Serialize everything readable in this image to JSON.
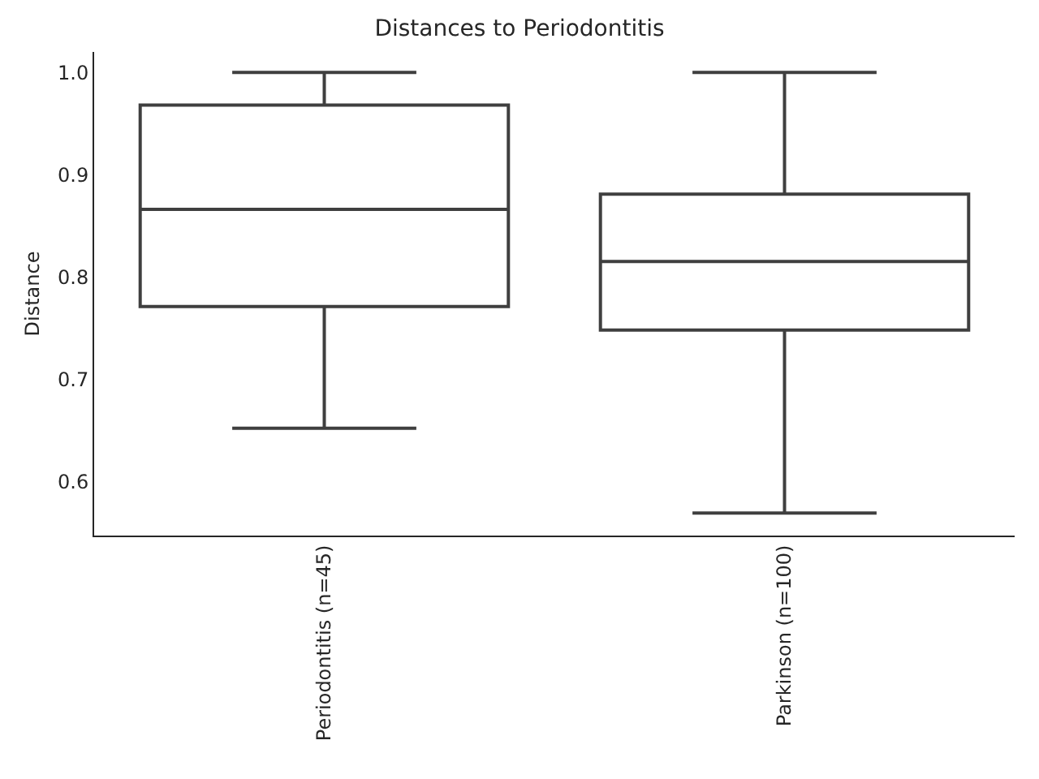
{
  "chart_data": {
    "type": "box",
    "title": "Distances to Periodontitis",
    "ylabel": "Distance",
    "categories": [
      "Periodontitis (n=45)",
      "Parkinson (n=100)"
    ],
    "series": [
      {
        "color": "#3f3f3f",
        "boxes": [
          {
            "low": 0.652,
            "q1": 0.771,
            "median": 0.866,
            "q3": 0.968,
            "high": 1.0
          },
          {
            "low": 0.569,
            "q1": 0.748,
            "median": 0.815,
            "q3": 0.881,
            "high": 1.0
          }
        ]
      }
    ],
    "ylim": [
      0.547,
      1.02
    ],
    "yticks": [
      0.6,
      0.7,
      0.8,
      0.9,
      {
        "value": 1.0,
        "label": "1.0"
      }
    ]
  }
}
